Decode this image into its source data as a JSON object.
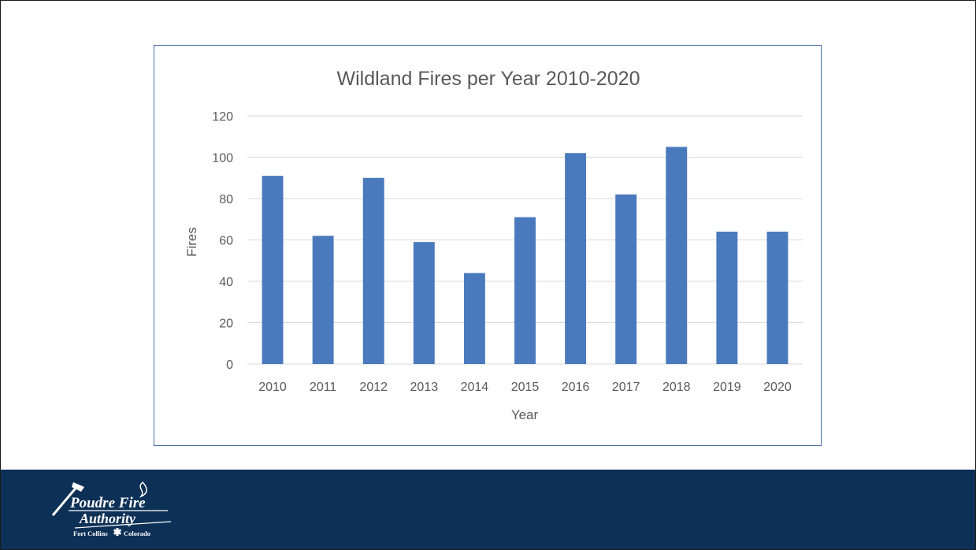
{
  "chart_data": {
    "type": "bar",
    "title": "Wildland Fires per Year 2010-2020",
    "xlabel": "Year",
    "ylabel": "Fires",
    "categories": [
      "2010",
      "2011",
      "2012",
      "2013",
      "2014",
      "2015",
      "2016",
      "2017",
      "2018",
      "2019",
      "2020"
    ],
    "values": [
      91,
      62,
      90,
      59,
      44,
      71,
      102,
      82,
      105,
      64,
      64
    ],
    "ylim": [
      0,
      120
    ],
    "yticks": [
      0,
      20,
      40,
      60,
      80,
      100,
      120
    ],
    "grid": true,
    "legend": "none",
    "bar_color": "#4a7abd",
    "grid_color": "#d9d9d9"
  },
  "footer": {
    "logo": {
      "line1": "Poudre Fire",
      "line2": "Authority",
      "city": "Fort Collins",
      "state": "Colorado"
    },
    "background_color": "#0d3057"
  }
}
